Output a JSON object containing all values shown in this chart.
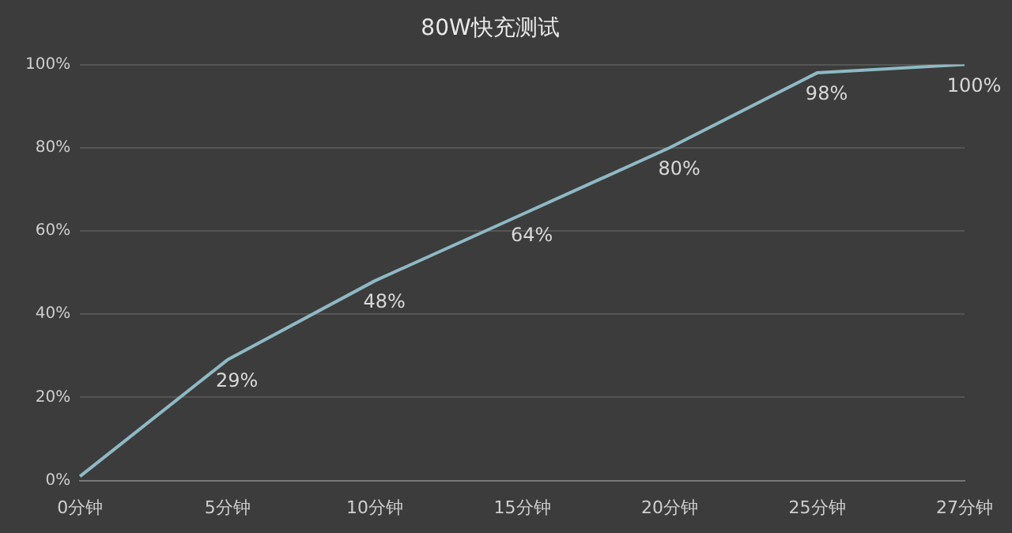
{
  "chart_data": {
    "type": "line",
    "title": "80W快充测试",
    "categories": [
      "0分钟",
      "5分钟",
      "10分钟",
      "15分钟",
      "20分钟",
      "25分钟",
      "27分钟"
    ],
    "series": [
      {
        "color": "#8fb9c4",
        "values": [
          1,
          29,
          48,
          64,
          80,
          98,
          100
        ],
        "value_labels": [
          null,
          "29%",
          "48%",
          "64%",
          "80%",
          "98%",
          "100%"
        ]
      }
    ],
    "ylim": [
      0,
      100
    ],
    "yticks": [
      {
        "value": 0,
        "label": "0%"
      },
      {
        "value": 20,
        "label": "20%"
      },
      {
        "value": 40,
        "label": "40%"
      },
      {
        "value": 60,
        "label": "60%"
      },
      {
        "value": 80,
        "label": "80%"
      },
      {
        "value": 100,
        "label": "100%"
      }
    ],
    "grid": "y",
    "legend": false,
    "marker": "none",
    "line_style": "solid"
  }
}
